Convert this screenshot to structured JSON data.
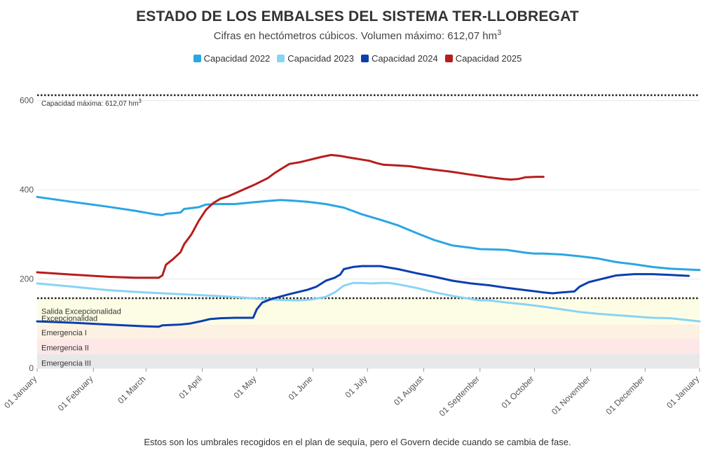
{
  "chart_data": {
    "type": "line",
    "title": "ESTADO DE LOS EMBALSES DEL SISTEMA TER-LLOBREGAT",
    "subtitle": "Cifras en hectómetros cúbicos. Volumen máximo: 612,07 hm",
    "subtitle_sup": "3",
    "footnote": "Estos son los umbrales recogidos en el plan de sequía, pero el Govern decide cuando se cambia de fase.",
    "ylim": [
      0,
      612.07
    ],
    "yticks": [
      0,
      200,
      400,
      600
    ],
    "xlim": [
      1,
      366
    ],
    "xticks": [
      {
        "label": "01 January",
        "day": 1
      },
      {
        "label": "01 February",
        "day": 32
      },
      {
        "label": "01 March",
        "day": 61
      },
      {
        "label": "01 April",
        "day": 92
      },
      {
        "label": "01 May",
        "day": 122
      },
      {
        "label": "01 June",
        "day": 153
      },
      {
        "label": "01 July",
        "day": 183
      },
      {
        "label": "01 August",
        "day": 214
      },
      {
        "label": "01 September",
        "day": 245
      },
      {
        "label": "01 October",
        "day": 275
      },
      {
        "label": "01 November",
        "day": 306
      },
      {
        "label": "01 December",
        "day": 336
      },
      {
        "label": "01 January",
        "day": 366
      }
    ],
    "max_capacity": {
      "value": 612.07,
      "label": "Capacidad máxima: 612,07 hm",
      "label_sup": "3"
    },
    "threshold_line": 157,
    "bands": [
      {
        "name": "Emergencia III",
        "from": 0,
        "to": 32,
        "color": "#e8e8e8",
        "label_at": 12
      },
      {
        "name": "Emergencia II",
        "from": 32,
        "to": 65,
        "color": "#fde7e7",
        "label_at": 46
      },
      {
        "name": "Emergencia I",
        "from": 65,
        "to": 98,
        "color": "#fdf1e4",
        "label_at": 80
      },
      {
        "name": "Excepcionalidad",
        "from": 98,
        "to": 142,
        "color": "#fdfde6",
        "label_at": 112
      },
      {
        "name": "Salida Excepcionalidad",
        "from": 142,
        "to": 157,
        "color": "#fdfde6",
        "label_at": 128
      }
    ],
    "series": [
      {
        "name": "Capacidad 2022",
        "color": "#29a6e3",
        "points": [
          [
            1,
            384
          ],
          [
            20,
            373
          ],
          [
            40,
            362
          ],
          [
            55,
            353
          ],
          [
            66,
            345
          ],
          [
            70,
            343
          ],
          [
            72,
            346
          ],
          [
            80,
            349
          ],
          [
            82,
            357
          ],
          [
            90,
            361
          ],
          [
            94,
            367
          ],
          [
            100,
            368
          ],
          [
            110,
            368
          ],
          [
            120,
            372
          ],
          [
            128,
            375
          ],
          [
            135,
            377
          ],
          [
            140,
            376
          ],
          [
            150,
            373
          ],
          [
            160,
            368
          ],
          [
            170,
            360
          ],
          [
            180,
            345
          ],
          [
            190,
            333
          ],
          [
            200,
            320
          ],
          [
            210,
            303
          ],
          [
            220,
            287
          ],
          [
            230,
            275
          ],
          [
            240,
            270
          ],
          [
            245,
            267
          ],
          [
            255,
            266
          ],
          [
            260,
            265
          ],
          [
            270,
            259
          ],
          [
            275,
            257
          ],
          [
            280,
            257
          ],
          [
            290,
            255
          ],
          [
            300,
            251
          ],
          [
            310,
            246
          ],
          [
            320,
            238
          ],
          [
            330,
            233
          ],
          [
            340,
            227
          ],
          [
            350,
            223
          ],
          [
            366,
            220
          ]
        ]
      },
      {
        "name": "Capacidad 2023",
        "color": "#88d4f5",
        "points": [
          [
            1,
            190
          ],
          [
            20,
            183
          ],
          [
            40,
            175
          ],
          [
            60,
            170
          ],
          [
            80,
            166
          ],
          [
            100,
            162
          ],
          [
            115,
            158
          ],
          [
            125,
            155
          ],
          [
            135,
            153
          ],
          [
            145,
            152
          ],
          [
            152,
            154
          ],
          [
            160,
            160
          ],
          [
            165,
            170
          ],
          [
            170,
            185
          ],
          [
            175,
            191
          ],
          [
            180,
            191
          ],
          [
            185,
            190
          ],
          [
            190,
            191
          ],
          [
            195,
            191
          ],
          [
            200,
            188
          ],
          [
            210,
            180
          ],
          [
            220,
            170
          ],
          [
            230,
            162
          ],
          [
            240,
            155
          ],
          [
            245,
            152
          ],
          [
            250,
            152
          ],
          [
            260,
            147
          ],
          [
            270,
            143
          ],
          [
            280,
            138
          ],
          [
            290,
            132
          ],
          [
            300,
            126
          ],
          [
            310,
            122
          ],
          [
            320,
            119
          ],
          [
            330,
            116
          ],
          [
            340,
            113
          ],
          [
            350,
            112
          ],
          [
            366,
            105
          ]
        ]
      },
      {
        "name": "Capacidad 2024",
        "color": "#0b3fae",
        "points": [
          [
            1,
            105
          ],
          [
            20,
            102
          ],
          [
            40,
            98
          ],
          [
            60,
            94
          ],
          [
            68,
            93
          ],
          [
            70,
            96
          ],
          [
            80,
            98
          ],
          [
            85,
            100
          ],
          [
            92,
            106
          ],
          [
            96,
            110
          ],
          [
            102,
            112
          ],
          [
            110,
            113
          ],
          [
            118,
            113
          ],
          [
            120,
            113
          ],
          [
            122,
            132
          ],
          [
            125,
            147
          ],
          [
            130,
            155
          ],
          [
            140,
            166
          ],
          [
            150,
            176
          ],
          [
            155,
            183
          ],
          [
            160,
            196
          ],
          [
            165,
            203
          ],
          [
            168,
            210
          ],
          [
            170,
            222
          ],
          [
            175,
            227
          ],
          [
            180,
            229
          ],
          [
            185,
            229
          ],
          [
            190,
            229
          ],
          [
            200,
            222
          ],
          [
            210,
            213
          ],
          [
            220,
            205
          ],
          [
            230,
            196
          ],
          [
            240,
            190
          ],
          [
            250,
            186
          ],
          [
            260,
            180
          ],
          [
            270,
            175
          ],
          [
            280,
            170
          ],
          [
            285,
            168
          ],
          [
            290,
            170
          ],
          [
            297,
            172
          ],
          [
            300,
            183
          ],
          [
            305,
            193
          ],
          [
            310,
            198
          ],
          [
            320,
            208
          ],
          [
            330,
            211
          ],
          [
            340,
            211
          ],
          [
            350,
            209
          ],
          [
            360,
            207
          ]
        ]
      },
      {
        "name": "Capacidad 2025",
        "color": "#b81d1d",
        "points": [
          [
            1,
            215
          ],
          [
            20,
            210
          ],
          [
            40,
            205
          ],
          [
            55,
            203
          ],
          [
            65,
            203
          ],
          [
            68,
            203
          ],
          [
            70,
            208
          ],
          [
            72,
            232
          ],
          [
            76,
            245
          ],
          [
            80,
            260
          ],
          [
            82,
            278
          ],
          [
            86,
            300
          ],
          [
            90,
            330
          ],
          [
            94,
            355
          ],
          [
            98,
            370
          ],
          [
            102,
            380
          ],
          [
            106,
            385
          ],
          [
            110,
            392
          ],
          [
            116,
            403
          ],
          [
            120,
            410
          ],
          [
            124,
            418
          ],
          [
            128,
            426
          ],
          [
            132,
            438
          ],
          [
            136,
            448
          ],
          [
            140,
            458
          ],
          [
            146,
            462
          ],
          [
            150,
            466
          ],
          [
            154,
            470
          ],
          [
            158,
            474
          ],
          [
            163,
            478
          ],
          [
            168,
            476
          ],
          [
            172,
            473
          ],
          [
            178,
            469
          ],
          [
            184,
            465
          ],
          [
            188,
            460
          ],
          [
            192,
            456
          ],
          [
            198,
            455
          ],
          [
            206,
            453
          ],
          [
            214,
            448
          ],
          [
            222,
            444
          ],
          [
            230,
            440
          ],
          [
            238,
            435
          ],
          [
            245,
            431
          ],
          [
            250,
            428
          ],
          [
            258,
            424
          ],
          [
            262,
            423
          ],
          [
            266,
            424
          ],
          [
            270,
            428
          ],
          [
            276,
            429
          ],
          [
            280,
            429
          ]
        ]
      }
    ]
  }
}
